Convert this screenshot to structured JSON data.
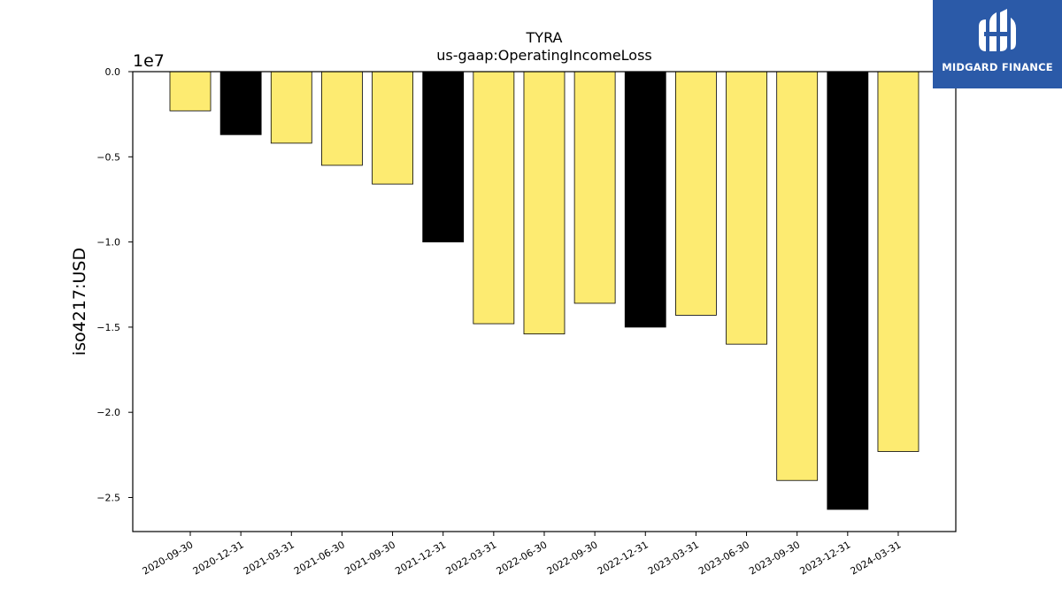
{
  "chart_data": {
    "type": "bar",
    "title": "TYRA",
    "subtitle": "us-gaap:OperatingIncomeLoss",
    "ylabel": "iso4217:USD",
    "xlabel": "",
    "scale_label": "1e7",
    "ylim": [
      -27000000,
      0
    ],
    "yticks": [
      0,
      -5000000,
      -10000000,
      -15000000,
      -20000000,
      -25000000
    ],
    "ytick_labels": [
      "0.0",
      "−0.5",
      "−1.0",
      "−1.5",
      "−2.0",
      "−2.5"
    ],
    "categories": [
      "2020-09-30",
      "2020-12-31",
      "2021-03-31",
      "2021-06-30",
      "2021-09-30",
      "2021-12-31",
      "2022-03-31",
      "2022-06-30",
      "2022-09-30",
      "2022-12-31",
      "2023-03-31",
      "2023-06-30",
      "2023-09-30",
      "2023-12-31",
      "2024-03-31"
    ],
    "values": [
      -2300000,
      -3700000,
      -4200000,
      -5500000,
      -6600000,
      -10000000,
      -14800000,
      -15400000,
      -13600000,
      -15000000,
      -14300000,
      -16000000,
      -24000000,
      -25700000,
      -22300000
    ],
    "bar_colors": [
      "#fdeb71",
      "#000000",
      "#fdeb71",
      "#fdeb71",
      "#fdeb71",
      "#000000",
      "#fdeb71",
      "#fdeb71",
      "#fdeb71",
      "#000000",
      "#fdeb71",
      "#fdeb71",
      "#fdeb71",
      "#000000",
      "#fdeb71"
    ],
    "grid": false,
    "legend": "none"
  },
  "logo": {
    "text": "MIDGARD FINANCE",
    "color": "#2b5aa8"
  }
}
